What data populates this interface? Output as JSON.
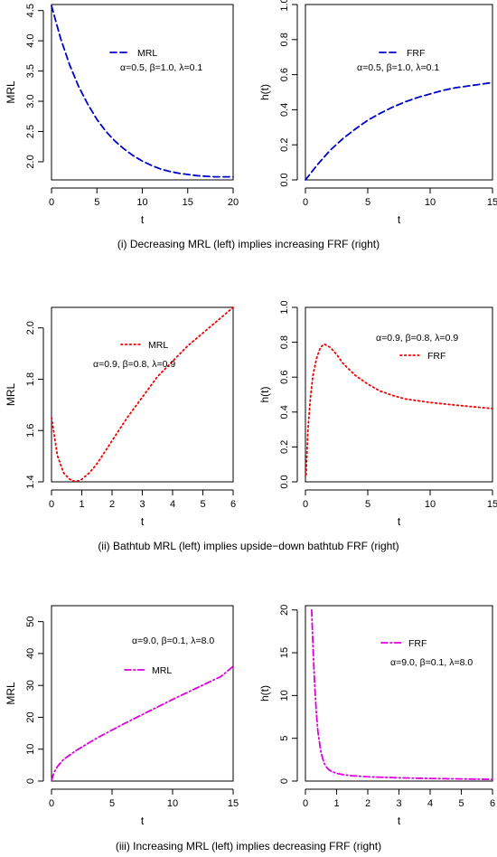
{
  "captions": [
    "(i) Decreasing MRL (left) implies increasing FRF (right)",
    "(ii) Bathtub MRL (left) implies upside−down bathtub FRF (right)",
    "(iii) Increasing MRL (left) implies decreasing FRF (right)"
  ],
  "chart_data": [
    {
      "id": "i-left",
      "type": "line",
      "xlabel": "t",
      "ylabel": "MRL",
      "xlim": [
        0,
        20
      ],
      "ylim": [
        1.7,
        4.6
      ],
      "xticks": [
        0,
        5,
        10,
        15,
        20
      ],
      "yticks": [
        2.0,
        2.5,
        3.0,
        3.5,
        4.0,
        4.5
      ],
      "xtick_labels": [
        "0",
        "5",
        "10",
        "15",
        "20"
      ],
      "ytick_labels": [
        "2.0",
        "2.5",
        "3.0",
        "3.5",
        "4.0",
        "4.5"
      ],
      "line_style": "dashed",
      "color": "#0000cc",
      "legend": {
        "label": "MRL",
        "placement": "top-center"
      },
      "annotation": "α=0.5, β=1.0, λ=0.1",
      "series": [
        {
          "name": "MRL",
          "x": [
            0,
            1,
            2,
            3,
            4,
            5,
            6,
            7,
            8,
            9,
            10,
            11,
            12,
            13,
            14,
            15,
            16,
            17,
            18,
            19,
            20
          ],
          "y": [
            4.58,
            4.04,
            3.6,
            3.24,
            2.95,
            2.7,
            2.5,
            2.34,
            2.21,
            2.1,
            2.01,
            1.94,
            1.88,
            1.84,
            1.81,
            1.79,
            1.77,
            1.76,
            1.75,
            1.75,
            1.75
          ]
        }
      ]
    },
    {
      "id": "i-right",
      "type": "line",
      "xlabel": "t",
      "ylabel": "h(t)",
      "xlim": [
        0,
        15
      ],
      "ylim": [
        0,
        1.0
      ],
      "xticks": [
        0,
        5,
        10,
        15
      ],
      "yticks": [
        0.0,
        0.2,
        0.4,
        0.6,
        0.8,
        1.0
      ],
      "xtick_labels": [
        "0",
        "5",
        "10",
        "15"
      ],
      "ytick_labels": [
        "0.0",
        "0.2",
        "0.4",
        "0.6",
        "0.8",
        "1.0"
      ],
      "line_style": "dashed",
      "color": "#0000cc",
      "legend": {
        "label": "FRF",
        "placement": "top-center"
      },
      "annotation": "α=0.5, β=1.0, λ=0.1",
      "series": [
        {
          "name": "FRF",
          "x": [
            0,
            1,
            2,
            3,
            4,
            5,
            6,
            7,
            8,
            9,
            10,
            11,
            12,
            13,
            14,
            15
          ],
          "y": [
            0.0,
            0.09,
            0.17,
            0.235,
            0.29,
            0.34,
            0.38,
            0.415,
            0.445,
            0.47,
            0.49,
            0.51,
            0.525,
            0.535,
            0.545,
            0.555
          ]
        }
      ]
    },
    {
      "id": "ii-left",
      "type": "line",
      "xlabel": "t",
      "ylabel": "MRL",
      "xlim": [
        0,
        6
      ],
      "ylim": [
        1.4,
        2.08
      ],
      "xticks": [
        0,
        1,
        2,
        3,
        4,
        5,
        6
      ],
      "yticks": [
        1.4,
        1.6,
        1.8,
        2.0
      ],
      "xtick_labels": [
        "0",
        "1",
        "2",
        "3",
        "4",
        "5",
        "6"
      ],
      "ytick_labels": [
        "1.4",
        "1.6",
        "1.8",
        "2.0"
      ],
      "line_style": "dotted",
      "color": "#ee0000",
      "legend": {
        "label": "MRL",
        "placement": "top-center"
      },
      "annotation": "α=0.9, β=0.8, λ=0.9",
      "series": [
        {
          "name": "MRL",
          "x": [
            0,
            0.2,
            0.4,
            0.6,
            0.8,
            1.0,
            1.25,
            1.5,
            2.0,
            2.5,
            3.0,
            3.5,
            4.0,
            4.5,
            5.0,
            5.5,
            6.0
          ],
          "y": [
            1.65,
            1.5,
            1.435,
            1.41,
            1.4,
            1.41,
            1.435,
            1.47,
            1.56,
            1.65,
            1.73,
            1.81,
            1.87,
            1.93,
            1.98,
            2.03,
            2.08
          ]
        }
      ]
    },
    {
      "id": "ii-right",
      "type": "line",
      "xlabel": "t",
      "ylabel": "h(t)",
      "xlim": [
        0,
        15
      ],
      "ylim": [
        0,
        1.0
      ],
      "xticks": [
        0,
        5,
        10,
        15
      ],
      "yticks": [
        0.0,
        0.2,
        0.4,
        0.6,
        0.8,
        1.0
      ],
      "xtick_labels": [
        "0",
        "5",
        "10",
        "15"
      ],
      "ytick_labels": [
        "0.0",
        "0.2",
        "0.4",
        "0.6",
        "0.8",
        "1.0"
      ],
      "line_style": "dotted",
      "color": "#ee0000",
      "legend": {
        "label": "FRF",
        "placement": "top-right"
      },
      "annotation": "α=0.9, β=0.8, λ=0.9",
      "series": [
        {
          "name": "FRF",
          "x": [
            0.05,
            0.2,
            0.4,
            0.6,
            0.9,
            1.2,
            1.5,
            2.0,
            2.5,
            3.0,
            4.0,
            5.0,
            6.0,
            7.0,
            8.0,
            10.0,
            12.0,
            15.0
          ],
          "y": [
            0.04,
            0.3,
            0.48,
            0.61,
            0.71,
            0.77,
            0.79,
            0.77,
            0.73,
            0.68,
            0.61,
            0.56,
            0.52,
            0.495,
            0.475,
            0.455,
            0.44,
            0.42
          ]
        }
      ]
    },
    {
      "id": "iii-left",
      "type": "line",
      "xlabel": "t",
      "ylabel": "MRL",
      "xlim": [
        0,
        15
      ],
      "ylim": [
        0,
        55
      ],
      "xticks": [
        0,
        5,
        10,
        15
      ],
      "yticks": [
        0,
        10,
        20,
        30,
        40,
        50
      ],
      "xtick_labels": [
        "0",
        "5",
        "10",
        "15"
      ],
      "ytick_labels": [
        "0",
        "10",
        "20",
        "30",
        "40",
        "50"
      ],
      "line_style": "dashdot",
      "color": "#dd00dd",
      "legend": {
        "label": "MRL",
        "placement": "top-center"
      },
      "annotation": "α=9.0, β=0.1, λ=8.0",
      "series": [
        {
          "name": "MRL",
          "x": [
            0.02,
            0.1,
            0.25,
            0.5,
            1.0,
            2.0,
            3.0,
            4.0,
            5.0,
            6.0,
            8.0,
            10.0,
            12.0,
            14.0,
            15.0
          ],
          "y": [
            0.3,
            1.5,
            3.0,
            4.6,
            6.8,
            9.5,
            11.8,
            14.0,
            16.0,
            18.0,
            21.8,
            25.6,
            29.2,
            32.8,
            36.0
          ]
        }
      ]
    },
    {
      "id": "iii-right",
      "type": "line",
      "xlabel": "t",
      "ylabel": "h(t)",
      "xlim": [
        0,
        6
      ],
      "ylim": [
        0,
        20.5
      ],
      "xticks": [
        0,
        1,
        2,
        3,
        4,
        5,
        6
      ],
      "yticks": [
        0,
        5,
        10,
        15,
        20
      ],
      "xtick_labels": [
        "0",
        "1",
        "2",
        "3",
        "4",
        "5",
        "6"
      ],
      "ytick_labels": [
        "0",
        "5",
        "10",
        "15",
        "20"
      ],
      "line_style": "dashdot",
      "color": "#dd00dd",
      "legend": {
        "label": "FRF",
        "placement": "top-center"
      },
      "annotation": "α=9.0, β=0.1, λ=8.0",
      "series": [
        {
          "name": "FRF",
          "x": [
            0.2,
            0.25,
            0.3,
            0.35,
            0.4,
            0.5,
            0.6,
            0.7,
            0.8,
            1.0,
            1.2,
            1.5,
            2.0,
            3.0,
            4.0,
            5.0,
            6.0
          ],
          "y": [
            20.0,
            15.0,
            11.0,
            8.0,
            5.8,
            3.3,
            2.1,
            1.5,
            1.2,
            0.9,
            0.75,
            0.62,
            0.5,
            0.38,
            0.3,
            0.25,
            0.2
          ]
        }
      ]
    }
  ]
}
